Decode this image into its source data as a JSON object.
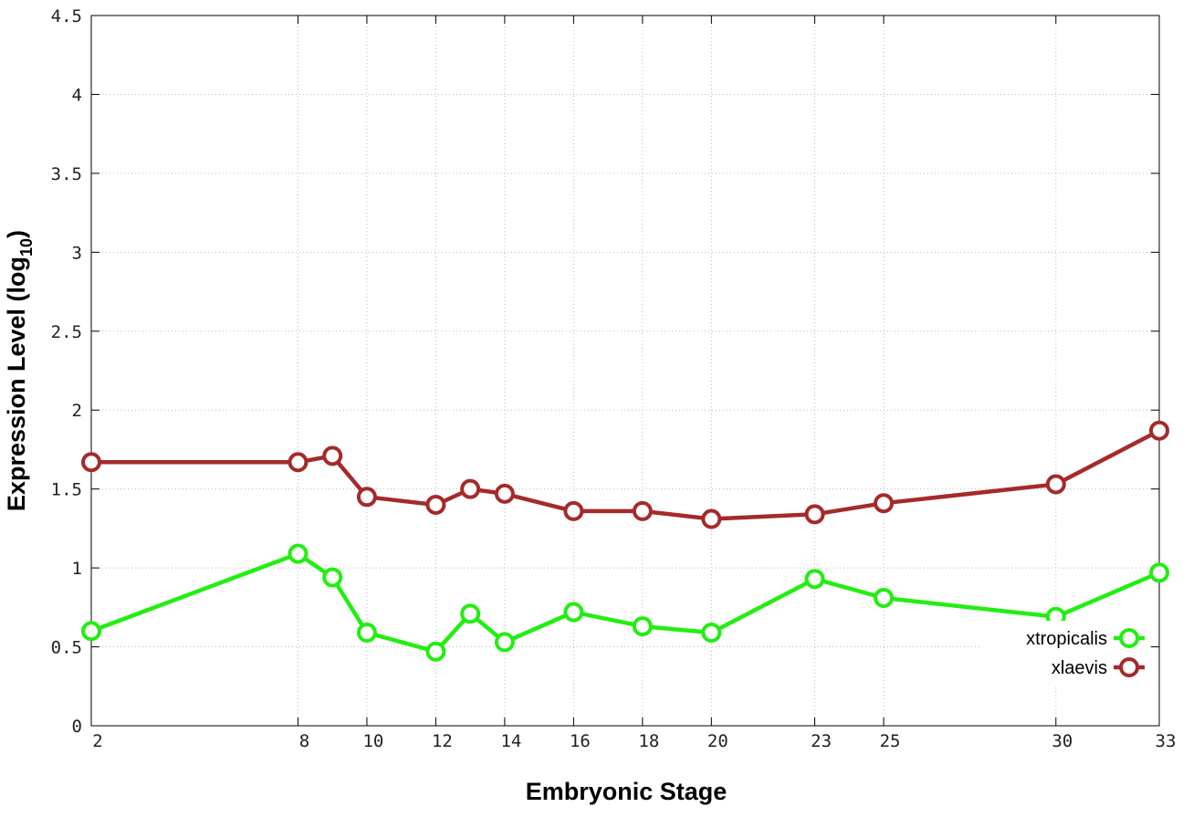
{
  "chart_data": {
    "type": "line",
    "title": "",
    "xlabel": "Embryonic Stage",
    "ylabel": {
      "main": "Expression Level (log",
      "sub": "10",
      "close": ")"
    },
    "x": [
      2,
      8,
      9,
      10,
      12,
      13,
      14,
      16,
      18,
      20,
      23,
      25,
      30,
      33
    ],
    "x_tick_labels": [
      "2",
      "8",
      "10",
      "12",
      "14",
      "16",
      "18",
      "20",
      "23",
      "25",
      "30",
      "33"
    ],
    "x_tick_values": [
      2,
      8,
      10,
      12,
      14,
      16,
      18,
      20,
      23,
      25,
      30,
      33
    ],
    "xlim": [
      2,
      33
    ],
    "ylim": [
      0,
      4.5
    ],
    "y_ticks": [
      0,
      0.5,
      1,
      1.5,
      2,
      2.5,
      3,
      3.5,
      4,
      4.5
    ],
    "y_tick_labels": [
      "0",
      "0.5",
      "1",
      "1.5",
      "2",
      "2.5",
      "3",
      "3.5",
      "4",
      "4.5"
    ],
    "grid": true,
    "legend_position": "bottom-right",
    "series": [
      {
        "name": "xtropicalis",
        "color": "#22ee11",
        "values": [
          0.6,
          1.09,
          0.94,
          0.59,
          0.47,
          0.71,
          0.53,
          0.72,
          0.63,
          0.59,
          0.93,
          0.81,
          0.69,
          0.97
        ]
      },
      {
        "name": "xlaevis",
        "color": "#a52a2a",
        "values": [
          1.67,
          1.67,
          1.71,
          1.45,
          1.4,
          1.5,
          1.47,
          1.36,
          1.36,
          1.31,
          1.34,
          1.41,
          1.53,
          1.87
        ]
      }
    ]
  }
}
